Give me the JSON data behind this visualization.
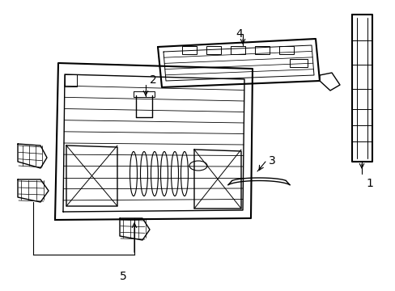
{
  "bg_color": "#ffffff",
  "line_color": "#000000",
  "lw": 1.0,
  "fig_width": 4.89,
  "fig_height": 3.6,
  "dpi": 100
}
